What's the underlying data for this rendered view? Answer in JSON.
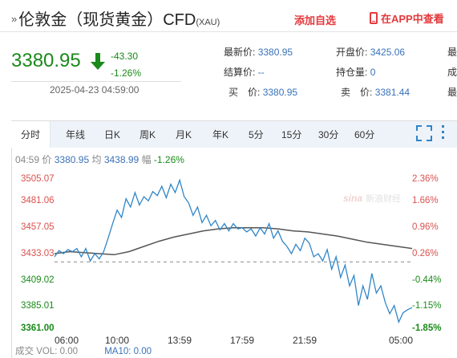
{
  "header": {
    "title": "伦敦金（现货黄金）CFD",
    "code": "(XAU)",
    "add_watchlist": "添加自选",
    "open_in_app": "在APP中查看"
  },
  "quote": {
    "price": "3380.95",
    "change": "-43.30",
    "change_pct": "-1.26%",
    "datetime": "2025-04-23 04:59:00",
    "direction": "down"
  },
  "details": [
    {
      "label": "最新价:",
      "value": "3380.95"
    },
    {
      "label": "开盘价:",
      "value": "3425.06"
    },
    {
      "label": "结算价:",
      "value": "--"
    },
    {
      "label": "持仓量:",
      "value": "0"
    },
    {
      "label": "买　价:",
      "value": "3380.95"
    },
    {
      "label": "卖　价:",
      "value": "3381.44"
    },
    {
      "label": "最",
      "value": ""
    },
    {
      "label": "成",
      "value": ""
    },
    {
      "label": "最",
      "value": ""
    }
  ],
  "tabs": [
    "分时",
    "年线",
    "日K",
    "周K",
    "月K",
    "年K",
    "5分",
    "15分",
    "30分",
    "60分"
  ],
  "active_tab": "分时",
  "info": {
    "time": "04:59",
    "price_label": "价",
    "price": "3380.95",
    "avg_label": "均",
    "avg": "3438.99",
    "amp_label": "幅",
    "amp": "-1.26%"
  },
  "volume": {
    "vol_label": "成交",
    "vol": "VOL: 0.00",
    "ma": "MA10: 0.00"
  },
  "colors": {
    "up": "#d9524f",
    "down": "#1a8a1a",
    "price_line": "#2f86c8",
    "avg_line": "#555555"
  },
  "chart_data": {
    "type": "line",
    "y_ticks": [
      "3505.07",
      "3481.06",
      "3457.05",
      "3433.03",
      "3409.02",
      "3385.01",
      "3361.00"
    ],
    "pct_ticks": [
      "2.36%",
      "1.66%",
      "0.96%",
      "0.26%",
      "-0.44%",
      "-1.15%",
      "-1.85%"
    ],
    "ylim": [
      3361.0,
      3505.07
    ],
    "reference": 3425.06,
    "x_ticks": [
      "06:00",
      "10:00",
      "13:59",
      "17:59",
      "21:59",
      "05:00"
    ],
    "x_tick_hours": [
      1,
      5,
      9,
      13,
      17,
      24
    ],
    "x_range_hours": [
      0,
      24
    ],
    "series": [
      {
        "x": [
          0,
          0.3,
          0.6,
          0.9,
          1.2,
          1.5,
          1.8,
          2.1,
          2.4,
          2.7,
          3.0,
          3.3,
          3.6,
          3.9,
          4.2,
          4.5,
          4.8,
          5.1,
          5.4,
          5.7,
          6.0,
          6.3,
          6.6,
          6.9,
          7.2,
          7.5,
          7.8,
          8.1,
          8.4,
          8.7,
          9.0,
          9.3,
          9.6,
          9.9,
          10.2,
          10.5,
          10.8,
          11.1,
          11.4,
          11.7,
          12.0,
          12.3,
          12.6,
          12.9,
          13.2,
          13.5,
          13.8,
          14.1,
          14.4,
          14.7,
          15.0,
          15.3,
          15.6,
          15.9,
          16.2,
          16.5,
          16.8,
          17.1,
          17.4,
          17.7,
          18.0,
          18.3,
          18.6,
          18.9,
          19.2,
          19.5,
          19.8,
          20.1,
          20.4,
          20.7,
          21.0,
          21.3,
          21.6,
          21.9,
          22.2,
          22.5,
          22.8,
          23.1,
          23.4,
          23.7,
          24.0
        ],
        "values": [
          3430,
          3436,
          3433,
          3437,
          3435,
          3438,
          3430,
          3438,
          3426,
          3433,
          3428,
          3435,
          3448,
          3462,
          3475,
          3468,
          3486,
          3478,
          3492,
          3480,
          3488,
          3484,
          3493,
          3489,
          3498,
          3487,
          3500,
          3492,
          3504,
          3488,
          3482,
          3470,
          3478,
          3463,
          3470,
          3460,
          3465,
          3456,
          3462,
          3455,
          3462,
          3457,
          3458,
          3454,
          3457,
          3450,
          3458,
          3452,
          3462,
          3448,
          3455,
          3445,
          3440,
          3433,
          3442,
          3436,
          3448,
          3443,
          3430,
          3433,
          3426,
          3437,
          3418,
          3430,
          3410,
          3422,
          3402,
          3412,
          3383,
          3402,
          3389,
          3414,
          3395,
          3402,
          3386,
          3375,
          3383,
          3367,
          3376,
          3379,
          3381
        ]
      },
      {
        "x": [
          0,
          1,
          2,
          3,
          4,
          5,
          6,
          7,
          8,
          9,
          10,
          11,
          12,
          13,
          14,
          15,
          16,
          17,
          18,
          19,
          20,
          21,
          22,
          23,
          24
        ],
        "values": [
          3433,
          3435,
          3434,
          3433,
          3432,
          3435,
          3440,
          3445,
          3449,
          3452,
          3455,
          3457,
          3458,
          3458,
          3458,
          3457,
          3455,
          3454,
          3452,
          3450,
          3447,
          3444,
          3442,
          3440,
          3438
        ]
      }
    ],
    "grid": false,
    "watermark": "sina新浪财经"
  }
}
